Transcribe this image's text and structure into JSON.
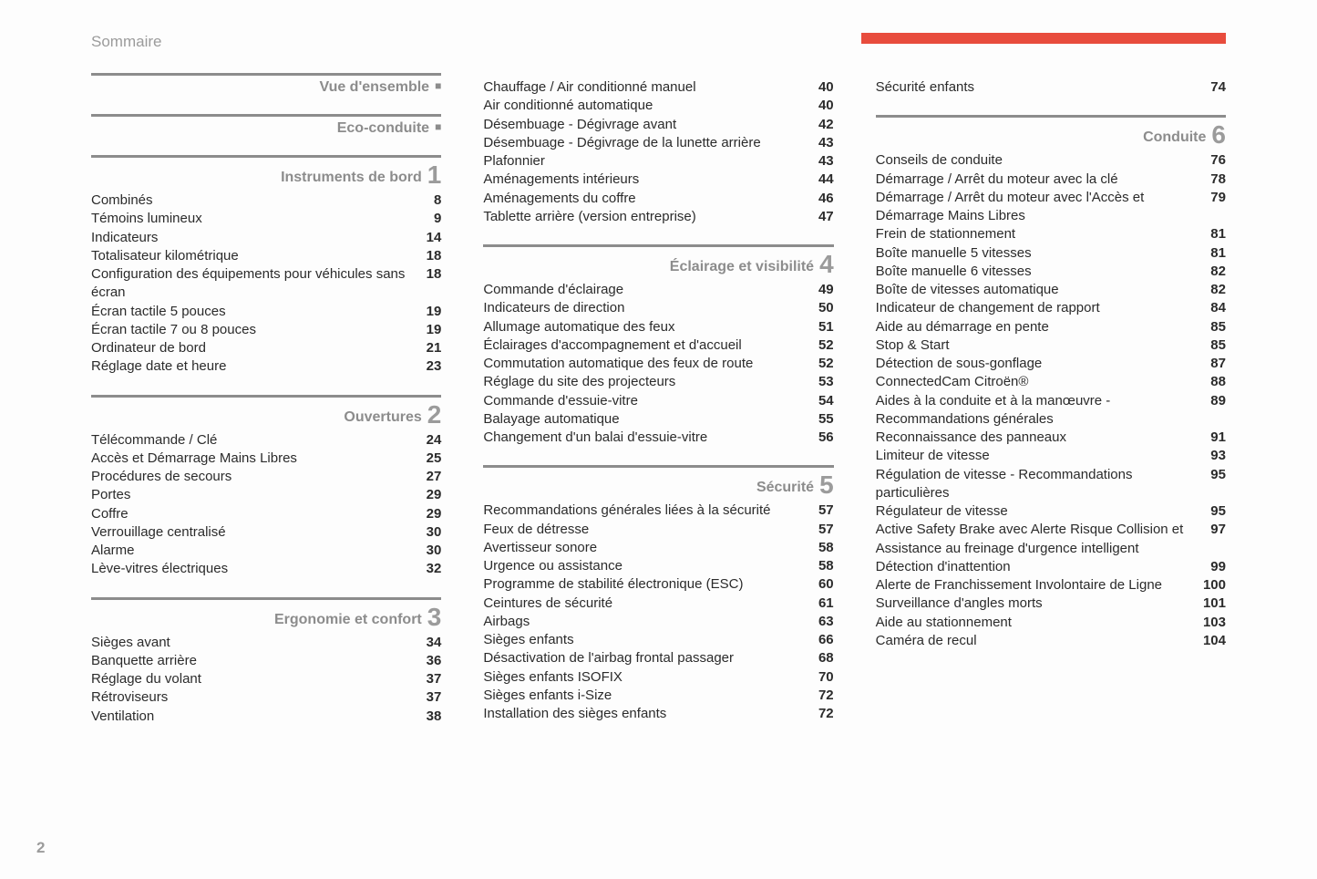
{
  "header": "Sommaire",
  "page_number": "2",
  "columns": [
    {
      "groups": [
        {
          "title": "Vue d'ensemble",
          "marker": "bullet",
          "entries": []
        },
        {
          "title": "Eco-conduite",
          "marker": "bullet",
          "entries": []
        },
        {
          "title": "Instruments de bord",
          "marker": "1",
          "entries": [
            {
              "label": "Combinés",
              "page": "8"
            },
            {
              "label": "Témoins lumineux",
              "page": "9"
            },
            {
              "label": "Indicateurs",
              "page": "14"
            },
            {
              "label": "Totalisateur kilométrique",
              "page": "18"
            },
            {
              "label": "Configuration des équipements pour véhicules sans écran",
              "page": "18"
            },
            {
              "label": "Écran tactile 5 pouces",
              "page": "19"
            },
            {
              "label": "Écran tactile 7 ou 8 pouces",
              "page": "19"
            },
            {
              "label": "Ordinateur de bord",
              "page": "21"
            },
            {
              "label": "Réglage date et heure",
              "page": "23"
            }
          ]
        },
        {
          "title": "Ouvertures",
          "marker": "2",
          "entries": [
            {
              "label": "Télécommande / Clé",
              "page": "24"
            },
            {
              "label": "Accès et Démarrage Mains Libres",
              "page": "25"
            },
            {
              "label": "Procédures de secours",
              "page": "27"
            },
            {
              "label": "Portes",
              "page": "29"
            },
            {
              "label": "Coffre",
              "page": "29"
            },
            {
              "label": "Verrouillage centralisé",
              "page": "30"
            },
            {
              "label": "Alarme",
              "page": "30"
            },
            {
              "label": "Lève-vitres électriques",
              "page": "32"
            }
          ]
        },
        {
          "title": "Ergonomie et confort",
          "marker": "3",
          "entries": [
            {
              "label": "Sièges avant",
              "page": "34"
            },
            {
              "label": "Banquette arrière",
              "page": "36"
            },
            {
              "label": "Réglage du volant",
              "page": "37"
            },
            {
              "label": "Rétroviseurs",
              "page": "37"
            },
            {
              "label": "Ventilation",
              "page": "38"
            }
          ]
        }
      ]
    },
    {
      "groups": [
        {
          "title": null,
          "marker": null,
          "entries": [
            {
              "label": "Chauffage / Air conditionné manuel",
              "page": "40"
            },
            {
              "label": "Air conditionné automatique",
              "page": "40"
            },
            {
              "label": "Désembuage - Dégivrage avant",
              "page": "42"
            },
            {
              "label": "Désembuage - Dégivrage de la lunette arrière",
              "page": "43"
            },
            {
              "label": "Plafonnier",
              "page": "43"
            },
            {
              "label": "Aménagements intérieurs",
              "page": "44"
            },
            {
              "label": "Aménagements du coffre",
              "page": "46"
            },
            {
              "label": "Tablette arrière (version entreprise)",
              "page": "47"
            }
          ]
        },
        {
          "title": "Éclairage et visibilité",
          "marker": "4",
          "entries": [
            {
              "label": "Commande d'éclairage",
              "page": "49"
            },
            {
              "label": "Indicateurs de direction",
              "page": "50"
            },
            {
              "label": "Allumage automatique des feux",
              "page": "51"
            },
            {
              "label": "Éclairages d'accompagnement et d'accueil",
              "page": "52"
            },
            {
              "label": "Commutation automatique des feux de route",
              "page": "52"
            },
            {
              "label": "Réglage du site des projecteurs",
              "page": "53"
            },
            {
              "label": "Commande d'essuie-vitre",
              "page": "54"
            },
            {
              "label": "Balayage automatique",
              "page": "55"
            },
            {
              "label": "Changement d'un balai d'essuie-vitre",
              "page": "56"
            }
          ]
        },
        {
          "title": "Sécurité",
          "marker": "5",
          "entries": [
            {
              "label": "Recommandations générales liées à la sécurité",
              "page": "57"
            },
            {
              "label": "Feux de détresse",
              "page": "57"
            },
            {
              "label": "Avertisseur sonore",
              "page": "58"
            },
            {
              "label": "Urgence ou assistance",
              "page": "58"
            },
            {
              "label": "Programme de stabilité électronique (ESC)",
              "page": "60"
            },
            {
              "label": "Ceintures de sécurité",
              "page": "61"
            },
            {
              "label": "Airbags",
              "page": "63"
            },
            {
              "label": "Sièges enfants",
              "page": "66"
            },
            {
              "label": "Désactivation de l'airbag frontal passager",
              "page": "68"
            },
            {
              "label": "Sièges enfants ISOFIX",
              "page": "70"
            },
            {
              "label": "Sièges enfants i-Size",
              "page": "72"
            },
            {
              "label": "Installation des sièges enfants",
              "page": "72"
            }
          ]
        }
      ]
    },
    {
      "groups": [
        {
          "title": null,
          "marker": null,
          "entries": [
            {
              "label": "Sécurité enfants",
              "page": "74"
            }
          ]
        },
        {
          "title": "Conduite",
          "marker": "6",
          "entries": [
            {
              "label": "Conseils de conduite",
              "page": "76"
            },
            {
              "label": "Démarrage / Arrêt du moteur avec la clé",
              "page": "78"
            },
            {
              "label": "Démarrage / Arrêt du moteur avec l'Accès et Démarrage Mains Libres",
              "page": "79"
            },
            {
              "label": "Frein de stationnement",
              "page": "81"
            },
            {
              "label": "Boîte manuelle 5 vitesses",
              "page": "81"
            },
            {
              "label": "Boîte manuelle 6 vitesses",
              "page": "82"
            },
            {
              "label": "Boîte de vitesses automatique",
              "page": "82"
            },
            {
              "label": "Indicateur de changement de rapport",
              "page": "84"
            },
            {
              "label": "Aide au démarrage en pente",
              "page": "85"
            },
            {
              "label": "Stop & Start",
              "page": "85"
            },
            {
              "label": "Détection de sous-gonflage",
              "page": "87"
            },
            {
              "label": "ConnectedCam Citroën®",
              "page": "88"
            },
            {
              "label": "Aides à la conduite et à la manœuvre - Recommandations générales",
              "page": "89"
            },
            {
              "label": "Reconnaissance des panneaux",
              "page": "91"
            },
            {
              "label": "Limiteur de vitesse",
              "page": "93"
            },
            {
              "label": "Régulation de vitesse - Recommandations particulières",
              "page": "95"
            },
            {
              "label": "Régulateur de vitesse",
              "page": "95"
            },
            {
              "label": "Active Safety Brake avec Alerte Risque Collision et Assistance au freinage d'urgence intelligent",
              "page": "97"
            },
            {
              "label": "Détection d'inattention",
              "page": "99"
            },
            {
              "label": "Alerte de Franchissement Involontaire de Ligne",
              "page": "100"
            },
            {
              "label": "Surveillance d'angles morts",
              "page": "101"
            },
            {
              "label": "Aide au stationnement",
              "page": "103"
            },
            {
              "label": "Caméra de recul",
              "page": "104"
            }
          ]
        }
      ]
    }
  ]
}
